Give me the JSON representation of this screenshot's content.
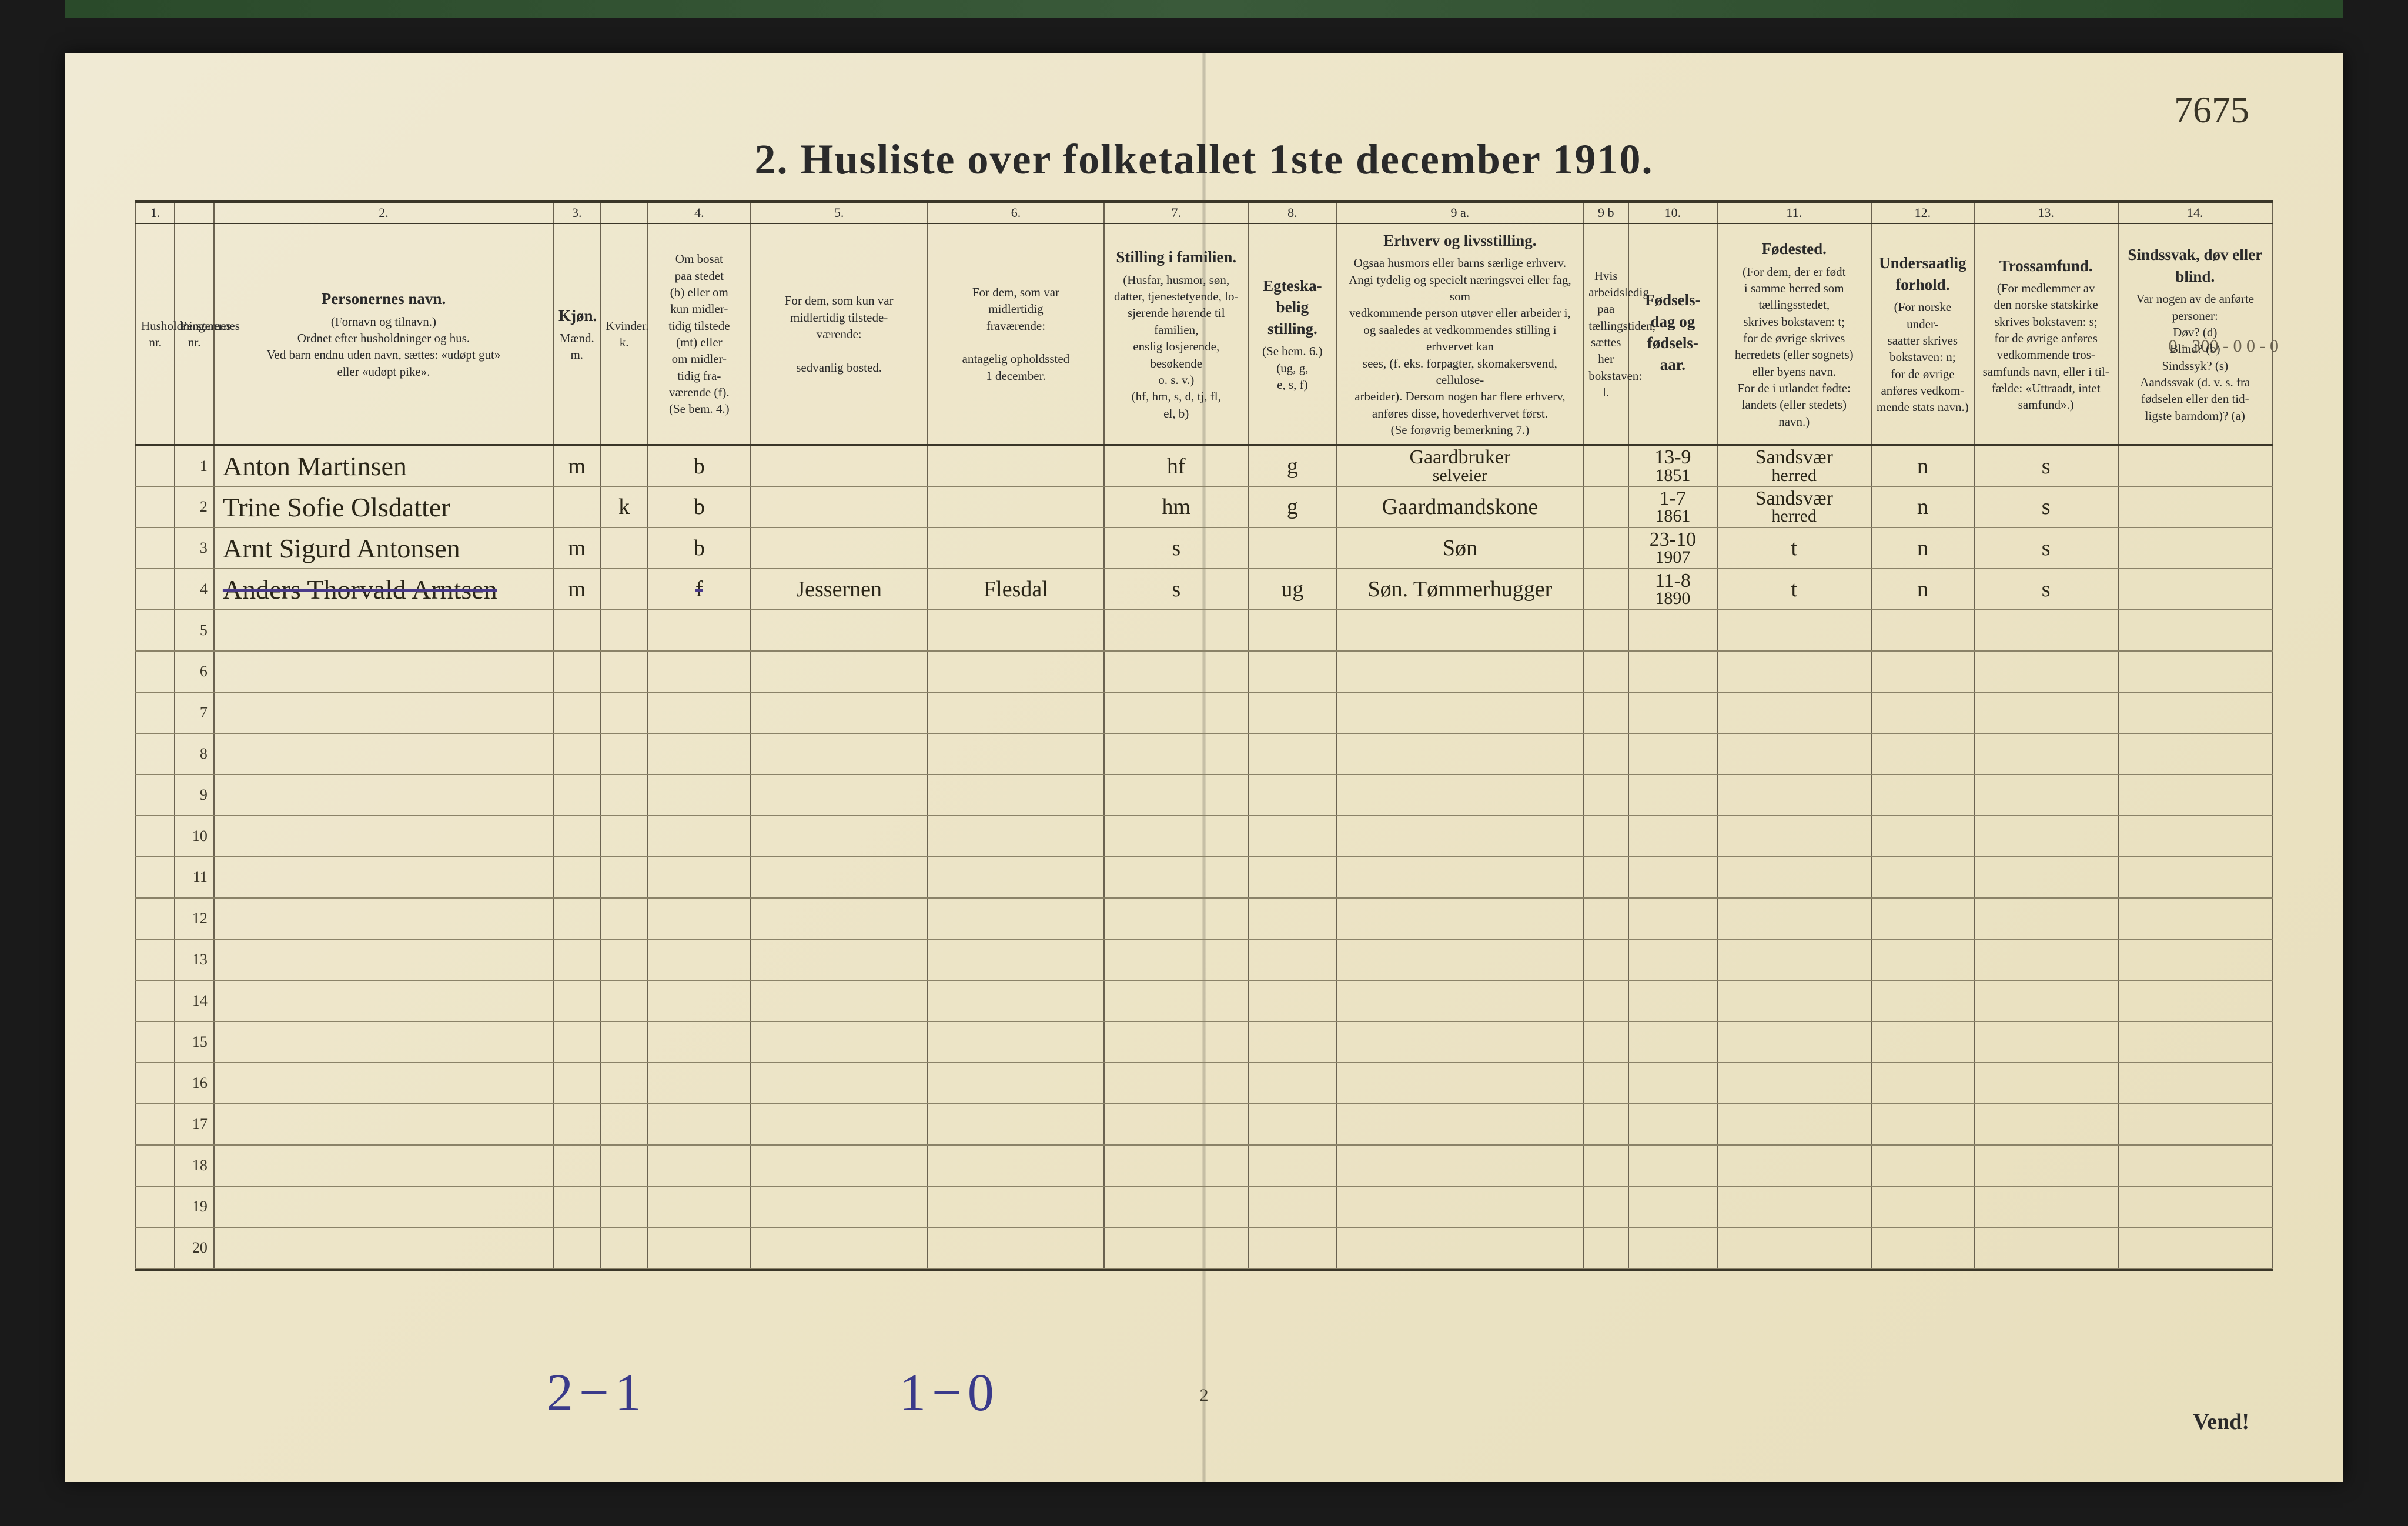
{
  "title": "2.  Husliste over folketallet 1ste december 1910.",
  "corner_note": "7675",
  "page_number": "2",
  "vend": "Vend!",
  "pencil_bottom_left": "2−1",
  "pencil_bottom_mid": "1−0",
  "margin_pencil": "0 - 300 - 0\n0 -    0",
  "table": {
    "col_widths_pct": [
      1.9,
      1.9,
      16.5,
      2.3,
      2.3,
      5.0,
      8.6,
      8.6,
      7.0,
      4.3,
      12.0,
      2.2,
      4.3,
      7.5,
      5.0,
      7.0,
      7.5
    ],
    "col_numbers": [
      "1.",
      "",
      "2.",
      "3.",
      "",
      "4.",
      "5.",
      "6.",
      "7.",
      "8.",
      "9 a.",
      "9 b",
      "10.",
      "11.",
      "12.",
      "13.",
      "14."
    ],
    "headers": [
      {
        "main": "",
        "sub": "Husholdningernes nr."
      },
      {
        "main": "",
        "sub": "Personernes nr."
      },
      {
        "main": "Personernes navn.",
        "sub": "(Fornavn og tilnavn.)\nOrdnet efter husholdninger og hus.\nVed barn endnu uden navn, sættes: «udøpt gut»\neller «udøpt pike»."
      },
      {
        "main": "Kjøn.",
        "sub": "Mænd.\nm."
      },
      {
        "main": "",
        "sub": "Kvinder.\nk."
      },
      {
        "main": "",
        "sub": "Om bosat\npaa stedet\n(b) eller om\nkun midler-\ntidig tilstede\n(mt) eller\nom midler-\ntidig fra-\nværende (f).\n(Se bem. 4.)"
      },
      {
        "main": "",
        "sub": "For dem, som kun var\nmidlertidig tilstede-\nværende:\n\nsedvanlig bosted."
      },
      {
        "main": "",
        "sub": "For dem, som var\nmidlertidig\nfraværende:\n\nantagelig opholdssted\n1 december."
      },
      {
        "main": "Stilling i familien.",
        "sub": "(Husfar, husmor, søn,\ndatter, tjenestetyende, lo-\nsjerende hørende til familien,\nenslig losjerende, besøkende\no. s. v.)\n(hf, hm, s, d, tj, fl,\nel, b)"
      },
      {
        "main": "Egteska-\nbelig\nstilling.",
        "sub": "(Se bem. 6.)\n(ug, g,\ne, s, f)"
      },
      {
        "main": "Erhverv og livsstilling.",
        "sub": "Ogsaa husmors eller barns særlige erhverv.\nAngi tydelig og specielt næringsvei eller fag, som\nvedkommende person utøver eller arbeider i,\nog saaledes at vedkommendes stilling i erhvervet kan\nsees, (f. eks. forpagter, skomakersvend, cellulose-\narbeider). Dersom nogen har flere erhverv,\nanføres disse, hovederhvervet først.\n(Se forøvrig bemerkning 7.)"
      },
      {
        "main": "",
        "sub": "Hvis arbeidsledig\npaa tællingstiden, sættes\nher bokstaven: l."
      },
      {
        "main": "Fødsels-\ndag\nog\nfødsels-\naar.",
        "sub": ""
      },
      {
        "main": "Fødested.",
        "sub": "(For dem, der er født\ni samme herred som\ntællingsstedet,\nskrives bokstaven: t;\nfor de øvrige skrives\nherredets (eller sognets)\neller byens navn.\nFor de i utlandet fødte:\nlandets (eller stedets)\nnavn.)"
      },
      {
        "main": "Undersaatlig\nforhold.",
        "sub": "(For norske under-\nsaatter skrives\nbokstaven: n;\nfor de øvrige\nanføres vedkom-\nmende stats navn.)"
      },
      {
        "main": "Trossamfund.",
        "sub": "(For medlemmer av\nden norske statskirke\nskrives bokstaven: s;\nfor de øvrige anføres\nvedkommende tros-\nsamfunds navn, eller i til-\nfælde: «Uttraadt, intet\nsamfund».)"
      },
      {
        "main": "Sindssvak, døv\neller blind.",
        "sub": "Var nogen av de anførte\npersoner:\nDøv?        (d)\nBlind?      (b)\nSindssyk?   (s)\nAandssvak (d. v. s. fra\nfødselen eller den tid-\nligste barndom)?  (a)"
      }
    ],
    "rows": [
      {
        "num": "1",
        "name": "Anton Martinsen",
        "sex_m": "m",
        "sex_k": "",
        "res": "b",
        "c5": "",
        "c6": "",
        "fam": "hf",
        "mar": "g",
        "occ": "Gaardbruker\nselveier",
        "c9b": "",
        "dob": "13-9\n1851",
        "birthplace": "Sandsvær\nherred",
        "nat": "n",
        "rel": "s",
        "c14": ""
      },
      {
        "num": "2",
        "name": "Trine Sofie Olsdatter",
        "sex_m": "",
        "sex_k": "k",
        "res": "b",
        "c5": "",
        "c6": "",
        "fam": "hm",
        "mar": "g",
        "occ": "Gaardmandskone",
        "c9b": "",
        "dob": "1-7\n1861",
        "birthplace": "Sandsvær\nherred",
        "nat": "n",
        "rel": "s",
        "c14": ""
      },
      {
        "num": "3",
        "name": "Arnt Sigurd Antonsen",
        "sex_m": "m",
        "sex_k": "",
        "res": "b",
        "c5": "",
        "c6": "",
        "fam": "s",
        "mar": "",
        "occ": "Søn",
        "c9b": "",
        "dob": "23-10\n1907",
        "birthplace": "t",
        "nat": "n",
        "rel": "s",
        "c14": ""
      },
      {
        "num": "4",
        "name": "Anders Thorvald Arntsen",
        "sex_m": "m",
        "sex_k": "",
        "res": "f",
        "c5": "Jessernen",
        "c6": "Flesdal",
        "fam": "s",
        "mar": "ug",
        "occ": "Søn. Tømmerhugger",
        "c9b": "",
        "dob": "11-8\n1890",
        "birthplace": "t",
        "nat": "n",
        "rel": "s",
        "c14": "",
        "struck": true
      }
    ],
    "empty_rows": [
      "5",
      "6",
      "7",
      "8",
      "9",
      "10",
      "11",
      "12",
      "13",
      "14",
      "15",
      "16",
      "17",
      "18",
      "19",
      "20"
    ]
  },
  "colors": {
    "paper": "#ede5c8",
    "ink": "#2a2618",
    "rule": "#6a6250",
    "heavy_rule": "#3a3628",
    "pencil_blue": "#3a3a8a"
  }
}
